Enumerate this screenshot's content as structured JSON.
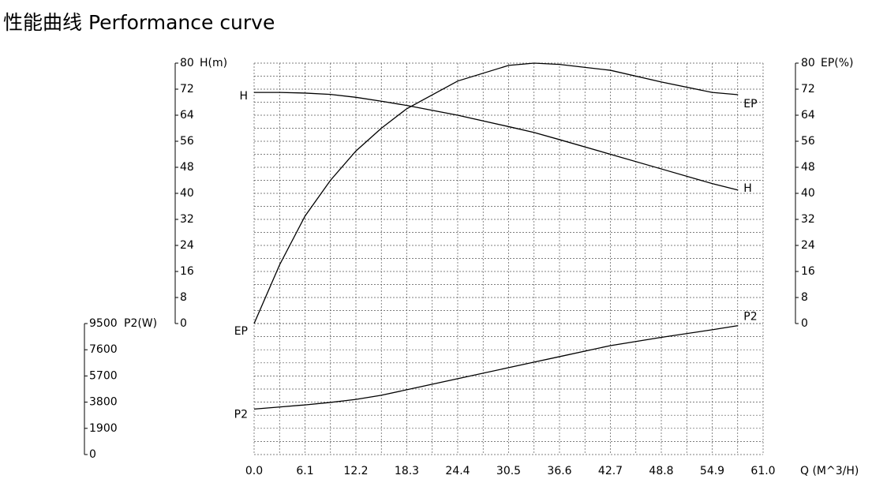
{
  "chart_data": {
    "type": "line",
    "title": "性能曲线  Performance curve",
    "x_label": "Q (M^3/H)",
    "y_label": "H(m)",
    "y2_label": "EP(%)",
    "y3_label": "P2(W)",
    "x": [
      0,
      3.05,
      6.1,
      9.15,
      12.2,
      15.25,
      18.3,
      24.4,
      30.5,
      33.55,
      36.6,
      42.7,
      48.8,
      54.9,
      58
    ],
    "series": [
      {
        "name": "H",
        "color": "#000000",
        "axis": "y",
        "values": [
          71,
          71,
          70.8,
          70.4,
          69.5,
          68.3,
          67,
          64,
          60.5,
          58.7,
          56.5,
          52,
          47.5,
          43,
          41
        ]
      },
      {
        "name": "EP",
        "color": "#000000",
        "axis": "y2",
        "values": [
          0,
          18,
          33,
          44,
          53,
          60,
          66,
          74.5,
          79.3,
          80,
          79.6,
          77.8,
          74.2,
          71,
          70.3
        ]
      },
      {
        "name": "P2",
        "color": "#000000",
        "axis": "y3",
        "values": [
          3300,
          3450,
          3600,
          3780,
          4000,
          4300,
          4700,
          5500,
          6300,
          6700,
          7100,
          7900,
          8500,
          9050,
          9350
        ]
      }
    ],
    "xlim": [
      0,
      61
    ],
    "xticks": [
      {
        "value": 0,
        "label": "0.0"
      },
      6.1,
      12.2,
      18.3,
      24.4,
      30.5,
      36.6,
      42.7,
      48.8,
      54.9,
      {
        "value": 61,
        "label": "61.0"
      }
    ],
    "ylim": [
      0,
      80
    ],
    "yticks": [
      0,
      8,
      16,
      24,
      32,
      40,
      48,
      56,
      64,
      72,
      80
    ],
    "y2lim": [
      0,
      80
    ],
    "y2ticks": [
      0,
      8,
      16,
      24,
      32,
      40,
      48,
      56,
      64,
      72,
      80
    ],
    "y3lim": [
      0,
      9500
    ],
    "y3ticks": [
      0,
      1900,
      3800,
      5700,
      7600,
      9500
    ],
    "grid": true
  }
}
